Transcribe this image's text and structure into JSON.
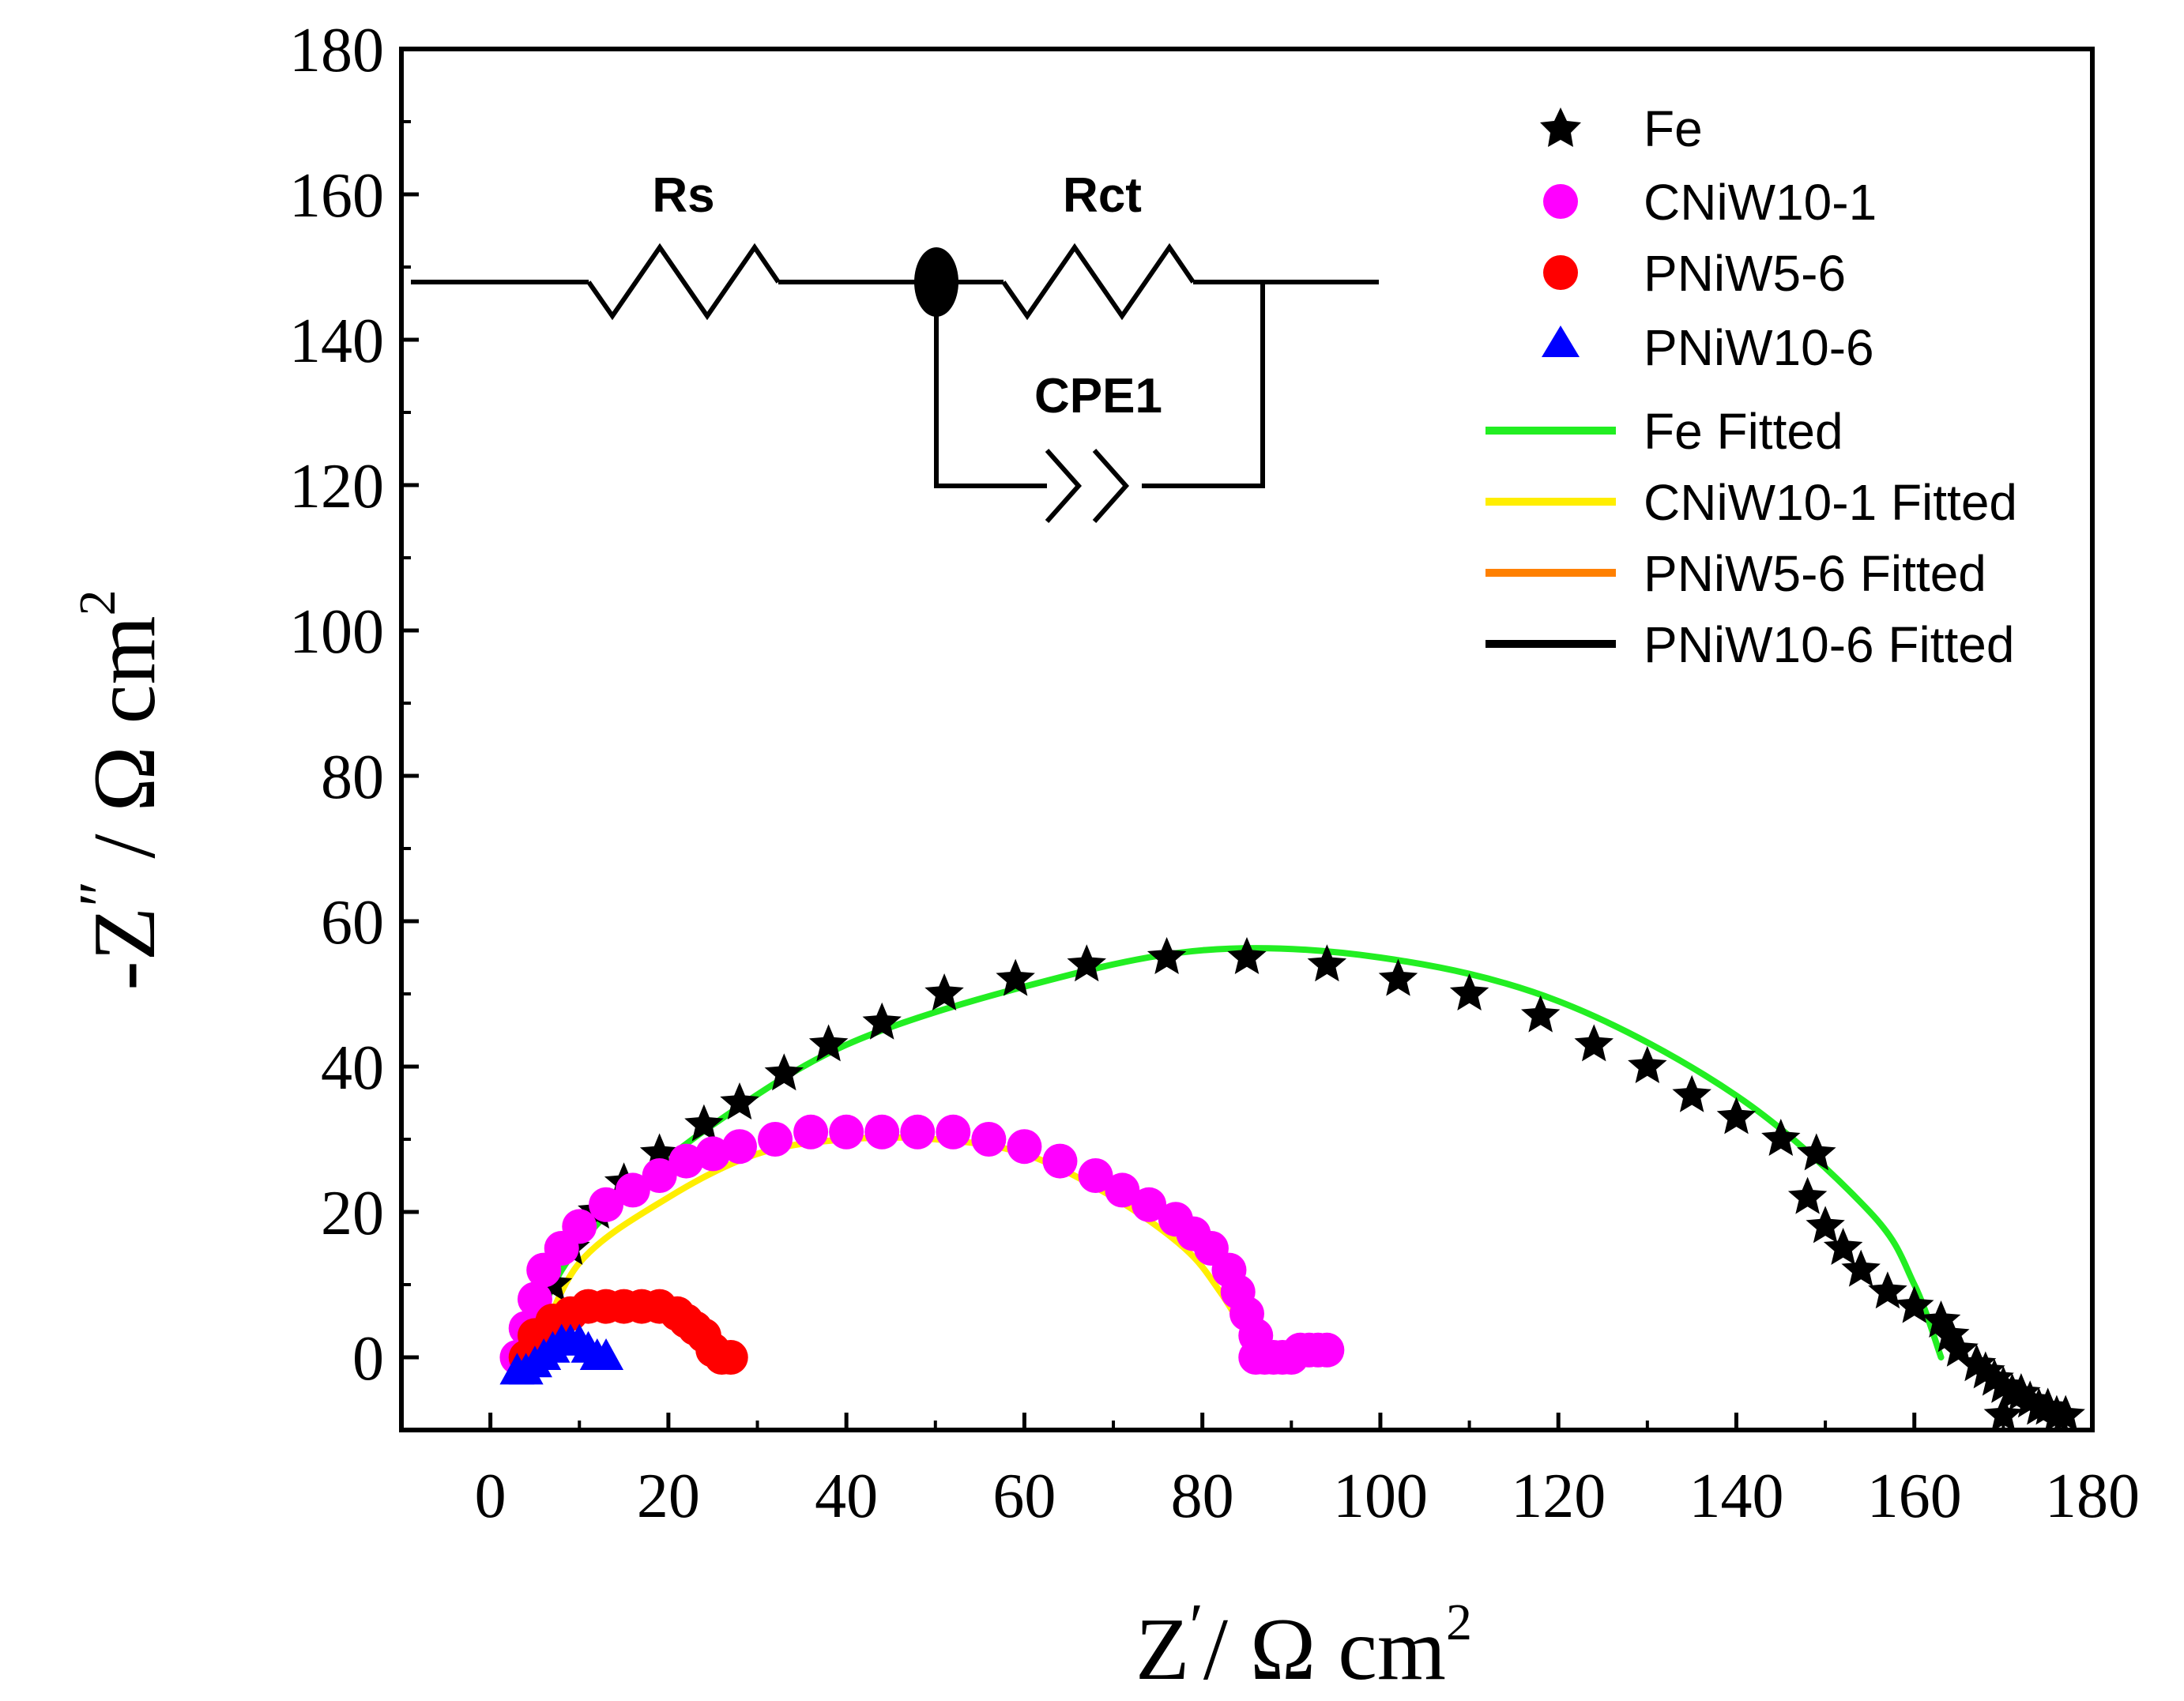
{
  "chart_data": {
    "type": "scatter",
    "title": "",
    "xlabel": "Z′/ Ω cm²",
    "ylabel": "-Z″ / Ω cm²",
    "xlabel_parts": {
      "z": "Z",
      "prime": "′",
      "unit": "/ Ω cm",
      "exp": "2"
    },
    "ylabel_parts": {
      "minus": "-",
      "z": "Z",
      "prime": "″",
      "unit": " / Ω cm",
      "exp": "2"
    },
    "xlim": [
      -10,
      180
    ],
    "ylim": [
      -10,
      180
    ],
    "x_ticks": [
      "0",
      "20",
      "40",
      "60",
      "80",
      "100",
      "120",
      "140",
      "160",
      "180"
    ],
    "y_ticks": [
      "0",
      "20",
      "40",
      "60",
      "80",
      "100",
      "120",
      "140",
      "160",
      "180"
    ],
    "tick_values": [
      0,
      20,
      40,
      60,
      80,
      100,
      120,
      140,
      160,
      180
    ],
    "legend_position": "top-right",
    "series": [
      {
        "name": "Fe",
        "marker": "star",
        "color": "#000000",
        "x": [
          4,
          5,
          7,
          9,
          12,
          15,
          19,
          24,
          28,
          33,
          38,
          44,
          51,
          59,
          67,
          76,
          85,
          94,
          102,
          110,
          118,
          124,
          130,
          135,
          140,
          145,
          149,
          148,
          150,
          152,
          154,
          157,
          160,
          163,
          164,
          165,
          167,
          168,
          169,
          170,
          171,
          172,
          173,
          174,
          175,
          176,
          177,
          170
        ],
        "y": [
          0,
          5,
          10,
          15,
          20,
          24,
          28,
          32,
          35,
          39,
          43,
          46,
          50,
          52,
          54,
          55,
          55,
          54,
          52,
          50,
          47,
          43,
          40,
          36,
          33,
          30,
          28,
          22,
          18,
          15,
          12,
          9,
          7,
          5,
          3,
          1,
          -1,
          -2,
          -3,
          -4,
          -5,
          -5,
          -6,
          -7,
          -7,
          -8,
          -8,
          -8
        ]
      },
      {
        "name": "CNiW10-1",
        "marker": "circle",
        "color": "#ff00ff",
        "x": [
          3,
          4,
          5,
          6,
          8,
          10,
          13,
          16,
          19,
          22,
          25,
          28,
          32,
          36,
          40,
          44,
          48,
          52,
          56,
          60,
          64,
          68,
          71,
          74,
          77,
          79,
          81,
          83,
          84,
          85,
          86,
          86,
          87,
          88,
          89,
          90,
          91,
          92,
          93,
          94
        ],
        "y": [
          0,
          4,
          8,
          12,
          15,
          18,
          21,
          23,
          25,
          27,
          28,
          29,
          30,
          31,
          31,
          31,
          31,
          31,
          30,
          29,
          27,
          25,
          23,
          21,
          19,
          17,
          15,
          12,
          9,
          6,
          3,
          0,
          0,
          0,
          0,
          0,
          1,
          1,
          1,
          1
        ]
      },
      {
        "name": "PNiW5-6",
        "marker": "circle",
        "color": "#ff0000",
        "x": [
          4,
          5,
          7,
          9,
          11,
          13,
          15,
          17,
          19,
          21,
          22,
          23,
          24,
          25,
          26,
          27
        ],
        "y": [
          0,
          3,
          5,
          6,
          7,
          7,
          7,
          7,
          7,
          6,
          5,
          4,
          3,
          1,
          0,
          0
        ]
      },
      {
        "name": "PNiW10-6",
        "marker": "triangle",
        "color": "#0000ff",
        "x": [
          3,
          4,
          5,
          6,
          7,
          8,
          9,
          10,
          11,
          12,
          13
        ],
        "y": [
          -2,
          -2,
          -1,
          0,
          1,
          2,
          2,
          2,
          1,
          0,
          0
        ]
      },
      {
        "name": "Fe Fitted",
        "marker": "line",
        "color": "#22ee22",
        "x": [
          4,
          8,
          15,
          25,
          40,
          60,
          80,
          100,
          120,
          140,
          155,
          160,
          163
        ],
        "y": [
          0,
          12,
          22,
          32,
          43,
          51,
          56,
          55,
          49,
          36,
          20,
          10,
          0
        ]
      },
      {
        "name": "CNiW10-1 Fitted",
        "marker": "line",
        "color": "#ffee00",
        "x": [
          5,
          10,
          20,
          30,
          40,
          50,
          60,
          70,
          78,
          82,
          85
        ],
        "y": [
          0,
          13,
          22,
          28,
          30,
          30,
          28,
          22,
          15,
          9,
          3
        ]
      },
      {
        "name": "PNiW5-6 Fitted",
        "marker": "line",
        "color": "#ff8000",
        "x": [
          4,
          7,
          11,
          15,
          19,
          22,
          24,
          25
        ],
        "y": [
          0,
          4,
          6,
          6.5,
          6,
          4,
          2,
          0
        ]
      },
      {
        "name": "PNiW10-6 Fitted",
        "marker": "line",
        "color": "#000000",
        "x": [
          3,
          5,
          7,
          9,
          11
        ],
        "y": [
          -2,
          0,
          1,
          1.5,
          1.5
        ]
      }
    ]
  },
  "circuit": {
    "labels": {
      "rs": "Rs",
      "rct": "Rct",
      "cpe": "CPE1"
    }
  }
}
